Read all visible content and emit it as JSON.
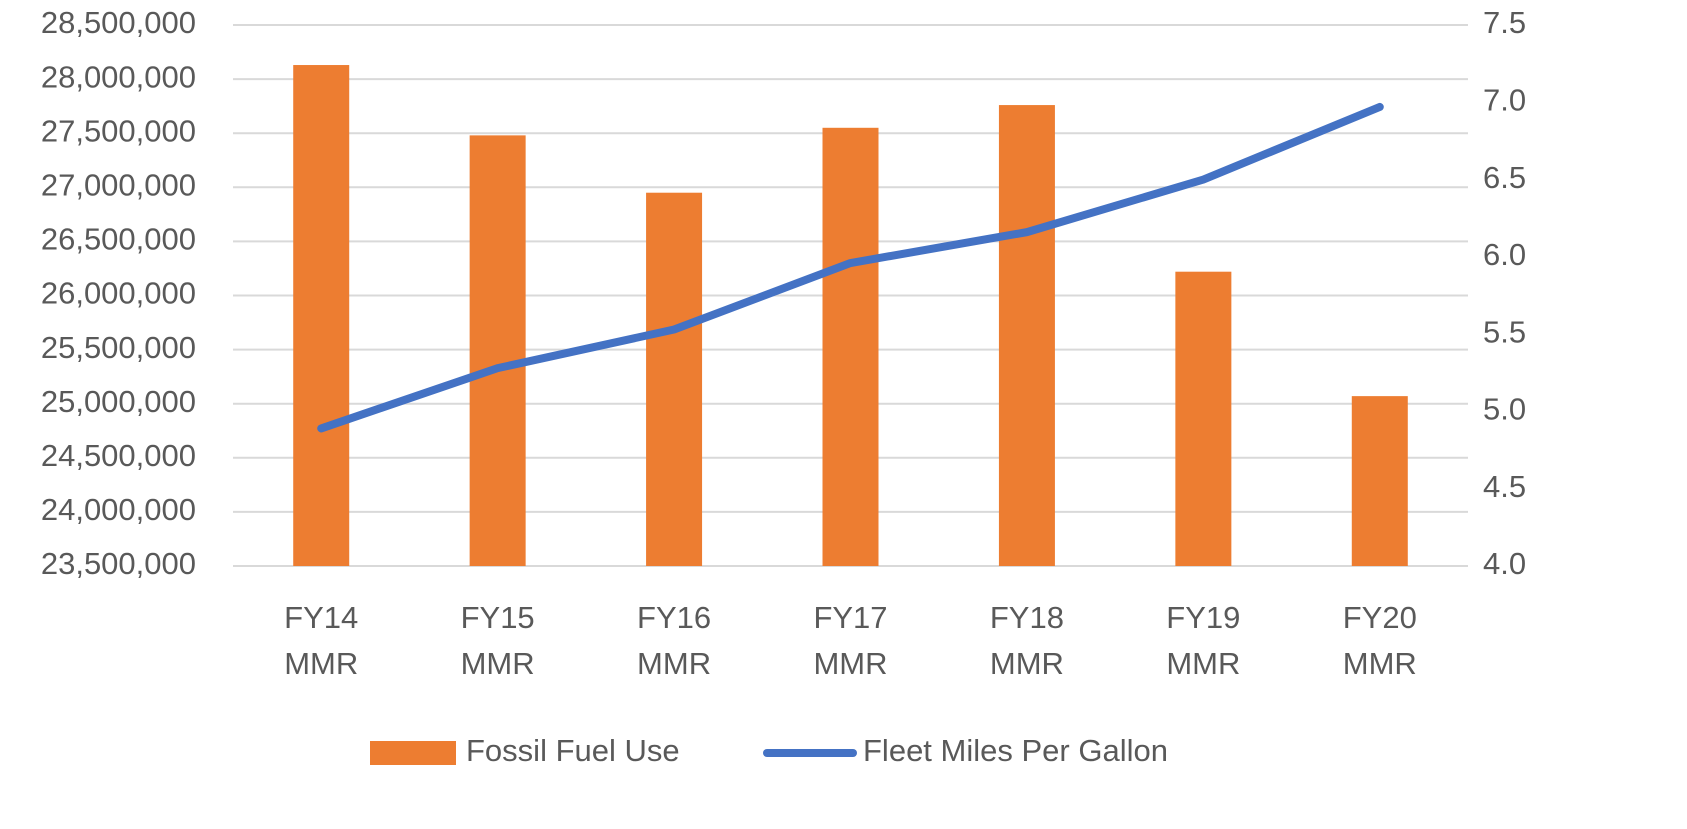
{
  "chart_data": {
    "type": "bar-line",
    "categories": [
      "FY14 MMR",
      "FY15 MMR",
      "FY16 MMR",
      "FY17 MMR",
      "FY18 MMR",
      "FY19 MMR",
      "FY20 MMR"
    ],
    "series": [
      {
        "name": "Fossil Fuel Use",
        "color": "#ed7d31",
        "type": "bar",
        "axis": "y",
        "values": [
          28130000,
          27480000,
          26950000,
          27550000,
          27760000,
          26220000,
          25070000
        ]
      },
      {
        "name": "Fleet Miles Per Gallon",
        "color": "#4472c4",
        "type": "line",
        "axis": "y2",
        "values": [
          4.89,
          5.28,
          5.53,
          5.96,
          6.16,
          6.5,
          6.97
        ]
      }
    ],
    "ylim": [
      23500000,
      28500000
    ],
    "yticks": [
      {
        "value": 23500000,
        "label": "23,500,000"
      },
      {
        "value": 24000000,
        "label": "24,000,000"
      },
      {
        "value": 24500000,
        "label": "24,500,000"
      },
      {
        "value": 25000000,
        "label": "25,000,000"
      },
      {
        "value": 25500000,
        "label": "25,500,000"
      },
      {
        "value": 26000000,
        "label": "26,000,000"
      },
      {
        "value": 26500000,
        "label": "26,500,000"
      },
      {
        "value": 27000000,
        "label": "27,000,000"
      },
      {
        "value": 27500000,
        "label": "27,500,000"
      },
      {
        "value": 28000000,
        "label": "28,000,000"
      },
      {
        "value": 28500000,
        "label": "28,500,000"
      }
    ],
    "y2lim": [
      4,
      7.5
    ],
    "y2ticks": [
      {
        "value": 4,
        "label": "4.0"
      },
      4.5,
      {
        "value": 5,
        "label": "5.0"
      },
      5.5,
      {
        "value": 6,
        "label": "6.0"
      },
      6.5,
      {
        "value": 7,
        "label": "7.0"
      },
      7.5
    ],
    "grid": true,
    "legend": "bottom"
  }
}
